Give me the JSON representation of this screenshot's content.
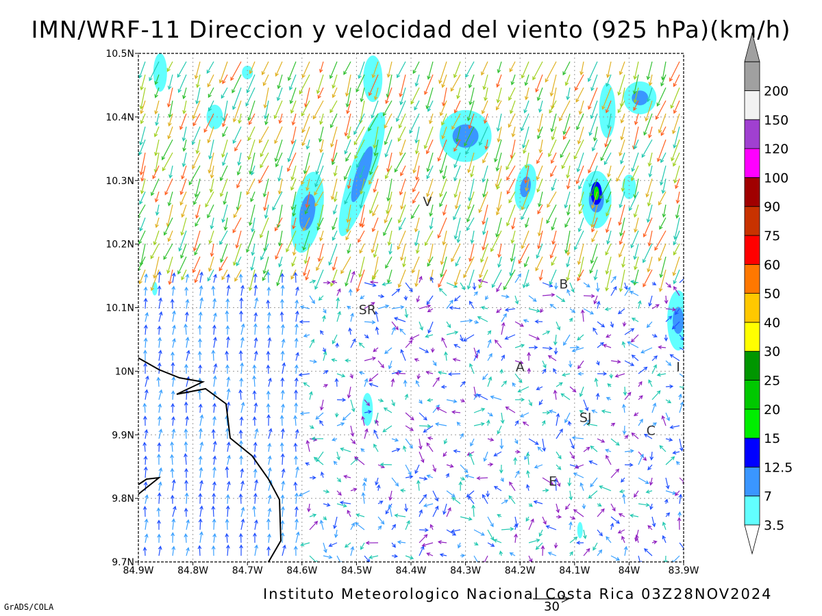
{
  "title": "IMN/WRF-11 Direccion y velocidad del viento (925 hPa)(km/h)",
  "credit": "Instituto Meteorologico Nacional Costa Rica 03Z28NOV2024",
  "software": "GrADS/COLA",
  "reference_vector": {
    "value": "30"
  },
  "map": {
    "lon_range": [
      -84.9,
      -83.9
    ],
    "lat_range": [
      9.7,
      10.5
    ],
    "lon_ticks": [
      "84.9W",
      "84.8W",
      "84.7W",
      "84.6W",
      "84.5W",
      "84.4W",
      "84.3W",
      "84.2W",
      "84.1W",
      "84W",
      "83.9W"
    ],
    "lat_ticks": [
      "9.7N",
      "9.8N",
      "9.9N",
      "10N",
      "10.1N",
      "10.2N",
      "10.3N",
      "10.4N",
      "10.5N"
    ],
    "grid": "dotted"
  },
  "places": [
    {
      "label": "V",
      "lon": -84.37,
      "lat": 10.26
    },
    {
      "label": "SR",
      "lon": -84.48,
      "lat": 10.09
    },
    {
      "label": "B",
      "lon": -84.12,
      "lat": 10.13
    },
    {
      "label": "A",
      "lon": -84.2,
      "lat": 10.0
    },
    {
      "label": "I",
      "lon": -83.91,
      "lat": 10.0
    },
    {
      "label": "SJ",
      "lon": -84.08,
      "lat": 9.92
    },
    {
      "label": "C",
      "lon": -83.96,
      "lat": 9.9
    },
    {
      "label": "E",
      "lon": -84.14,
      "lat": 9.82
    }
  ],
  "colorbar": {
    "labels": [
      "3.5",
      "7",
      "12.5",
      "15",
      "20",
      "25",
      "30",
      "40",
      "50",
      "60",
      "75",
      "90",
      "100",
      "120",
      "150",
      "200"
    ],
    "colors": [
      "#62ffff",
      "#3a96ff",
      "#0000ff",
      "#00ee00",
      "#00c800",
      "#009600",
      "#ffff00",
      "#ffc800",
      "#ff7800",
      "#ff0000",
      "#c83200",
      "#a00000",
      "#ff00ff",
      "#a040d0",
      "#f2f2f2",
      "#a0a0a0"
    ]
  }
}
